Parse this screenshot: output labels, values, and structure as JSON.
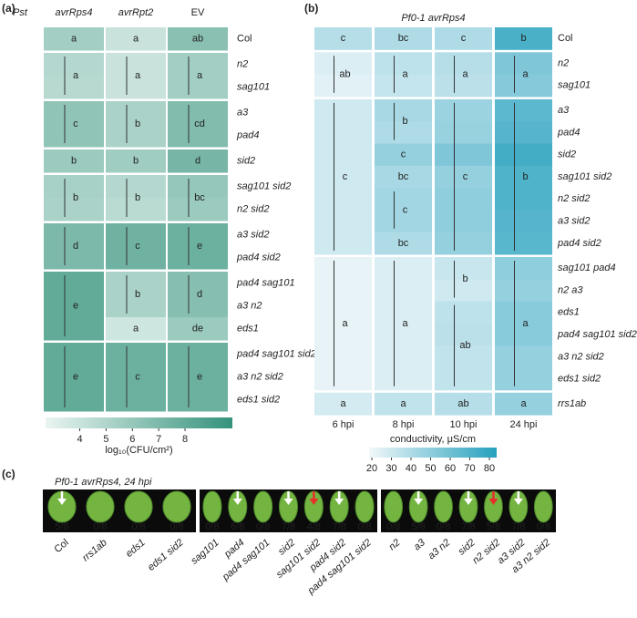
{
  "chart_data": [
    {
      "type": "heatmap",
      "panel_label": "(a)",
      "corner_label": "Pst",
      "columns": [
        "avrRps4",
        "avrRpt2",
        "EV"
      ],
      "rows": [
        "Col",
        "n2",
        "sag101",
        "a3",
        "pad4",
        "sid2",
        "sag101 sid2",
        "n2 sid2",
        "a3 sid2",
        "pad4 sid2",
        "pad4 sag101",
        "a3 n2",
        "eds1",
        "pad4 sag101 sid2",
        "a3 n2 sid2",
        "eds1 sid2"
      ],
      "values": [
        [
          5.5,
          4.0,
          6.5
        ],
        [
          4.8,
          4.0,
          5.5
        ],
        [
          4.7,
          4.0,
          5.5
        ],
        [
          6.2,
          5.2,
          6.8
        ],
        [
          6.2,
          5.2,
          6.8
        ],
        [
          5.8,
          5.6,
          7.2
        ],
        [
          5.3,
          4.8,
          6.0
        ],
        [
          5.2,
          4.6,
          5.8
        ],
        [
          7.0,
          7.5,
          7.6
        ],
        [
          7.0,
          7.5,
          7.6
        ],
        [
          8.0,
          5.2,
          6.6
        ],
        [
          8.0,
          5.2,
          6.6
        ],
        [
          8.0,
          3.8,
          5.8
        ],
        [
          8.0,
          7.6,
          7.6
        ],
        [
          8.0,
          7.6,
          7.6
        ],
        [
          8.0,
          7.6,
          7.6
        ]
      ],
      "letters": [
        {
          "text": "a",
          "column": 0,
          "rows": [
            0,
            0
          ]
        },
        {
          "text": "a",
          "column": 0,
          "rows": [
            1,
            2
          ]
        },
        {
          "text": "c",
          "column": 0,
          "rows": [
            3,
            4
          ]
        },
        {
          "text": "b",
          "column": 0,
          "rows": [
            5,
            5
          ]
        },
        {
          "text": "b",
          "column": 0,
          "rows": [
            6,
            7
          ]
        },
        {
          "text": "d",
          "column": 0,
          "rows": [
            8,
            9
          ]
        },
        {
          "text": "e",
          "column": 0,
          "rows": [
            10,
            12
          ]
        },
        {
          "text": "e",
          "column": 0,
          "rows": [
            13,
            15
          ]
        },
        {
          "text": "a",
          "column": 1,
          "rows": [
            0,
            0
          ]
        },
        {
          "text": "a",
          "column": 1,
          "rows": [
            1,
            2
          ]
        },
        {
          "text": "b",
          "column": 1,
          "rows": [
            3,
            4
          ]
        },
        {
          "text": "b",
          "column": 1,
          "rows": [
            5,
            5
          ]
        },
        {
          "text": "b",
          "column": 1,
          "rows": [
            6,
            7
          ]
        },
        {
          "text": "c",
          "column": 1,
          "rows": [
            8,
            9
          ]
        },
        {
          "text": "b",
          "column": 1,
          "rows": [
            10,
            11
          ]
        },
        {
          "text": "a",
          "column": 1,
          "rows": [
            12,
            12
          ]
        },
        {
          "text": "c",
          "column": 1,
          "rows": [
            13,
            15
          ]
        },
        {
          "text": "ab",
          "column": 2,
          "rows": [
            0,
            0
          ]
        },
        {
          "text": "a",
          "column": 2,
          "rows": [
            1,
            2
          ]
        },
        {
          "text": "cd",
          "column": 2,
          "rows": [
            3,
            4
          ]
        },
        {
          "text": "d",
          "column": 2,
          "rows": [
            5,
            5
          ]
        },
        {
          "text": "bc",
          "column": 2,
          "rows": [
            6,
            7
          ]
        },
        {
          "text": "e",
          "column": 2,
          "rows": [
            8,
            9
          ]
        },
        {
          "text": "d",
          "column": 2,
          "rows": [
            10,
            11
          ]
        },
        {
          "text": "de",
          "column": 2,
          "rows": [
            12,
            12
          ]
        },
        {
          "text": "e",
          "column": 2,
          "rows": [
            13,
            15
          ]
        }
      ],
      "colormap": [
        "#eaf5f2",
        "#34927b"
      ],
      "colorbar": {
        "label": "log₁₀(CFU/cm²)",
        "lim": [
          2.7,
          9.8
        ],
        "ticks": [
          4,
          5,
          6,
          7,
          8
        ]
      }
    },
    {
      "type": "heatmap",
      "panel_label": "(b)",
      "title": "Pf0-1 avrRps4",
      "columns": [
        "6 hpi",
        "8 hpi",
        "10 hpi",
        "24 hpi"
      ],
      "rows": [
        "Col",
        "n2",
        "sag101",
        "a3",
        "pad4",
        "sid2",
        "sag101 sid2",
        "n2 sid2",
        "a3 sid2",
        "pad4 sid2",
        "sag101 pad4",
        "n2 a3",
        "eds1",
        "pad4 sag101 sid2",
        "a3 n2 sid2",
        "eds1 sid2",
        "rrs1ab"
      ],
      "values": [
        [
          38,
          40,
          40,
          72
        ],
        [
          26,
          35,
          38,
          55
        ],
        [
          24,
          33,
          36,
          53
        ],
        [
          30,
          42,
          46,
          66
        ],
        [
          30,
          40,
          47,
          68
        ],
        [
          30,
          48,
          55,
          74
        ],
        [
          30,
          42,
          48,
          70
        ],
        [
          30,
          44,
          50,
          70
        ],
        [
          30,
          44,
          50,
          68
        ],
        [
          30,
          40,
          48,
          67
        ],
        [
          22,
          26,
          32,
          50
        ],
        [
          22,
          26,
          30,
          48
        ],
        [
          22,
          26,
          35,
          52
        ],
        [
          22,
          26,
          36,
          52
        ],
        [
          22,
          26,
          34,
          48
        ],
        [
          22,
          26,
          34,
          48
        ],
        [
          28,
          34,
          38,
          48
        ]
      ],
      "letters": [
        {
          "text": "c",
          "column": 0,
          "rows": [
            0,
            0
          ]
        },
        {
          "text": "ab",
          "column": 0,
          "rows": [
            1,
            2
          ]
        },
        {
          "text": "c",
          "column": 0,
          "rows": [
            3,
            9
          ]
        },
        {
          "text": "a",
          "column": 0,
          "rows": [
            10,
            15
          ]
        },
        {
          "text": "a",
          "column": 0,
          "rows": [
            16,
            16
          ]
        },
        {
          "text": "bc",
          "column": 1,
          "rows": [
            0,
            0
          ]
        },
        {
          "text": "a",
          "column": 1,
          "rows": [
            1,
            2
          ]
        },
        {
          "text": "b",
          "column": 1,
          "rows": [
            3,
            4
          ]
        },
        {
          "text": "c",
          "column": 1,
          "rows": [
            5,
            5
          ]
        },
        {
          "text": "bc",
          "column": 1,
          "rows": [
            6,
            6
          ]
        },
        {
          "text": "c",
          "column": 1,
          "rows": [
            7,
            8
          ]
        },
        {
          "text": "bc",
          "column": 1,
          "rows": [
            9,
            9
          ]
        },
        {
          "text": "a",
          "column": 1,
          "rows": [
            10,
            15
          ]
        },
        {
          "text": "a",
          "column": 1,
          "rows": [
            16,
            16
          ]
        },
        {
          "text": "c",
          "column": 2,
          "rows": [
            0,
            0
          ]
        },
        {
          "text": "a",
          "column": 2,
          "rows": [
            1,
            2
          ]
        },
        {
          "text": "c",
          "column": 2,
          "rows": [
            3,
            9
          ]
        },
        {
          "text": "b",
          "column": 2,
          "rows": [
            10,
            11
          ]
        },
        {
          "text": "ab",
          "column": 2,
          "rows": [
            12,
            15
          ]
        },
        {
          "text": "ab",
          "column": 2,
          "rows": [
            16,
            16
          ]
        },
        {
          "text": "b",
          "column": 3,
          "rows": [
            0,
            0
          ]
        },
        {
          "text": "a",
          "column": 3,
          "rows": [
            1,
            2
          ]
        },
        {
          "text": "b",
          "column": 3,
          "rows": [
            3,
            9
          ]
        },
        {
          "text": "a",
          "column": 3,
          "rows": [
            10,
            15
          ]
        },
        {
          "text": "a",
          "column": 3,
          "rows": [
            16,
            16
          ]
        }
      ],
      "highlight": {
        "color": "#e8302a",
        "rows": [
          6,
          7
        ]
      },
      "colormap": [
        "#f2f8fa",
        "#24a0bd"
      ],
      "colorbar": {
        "label": "conductivity, μS/cm",
        "lim": [
          18.6,
          83.7
        ],
        "ticks": [
          20,
          30,
          40,
          50,
          60,
          70,
          80
        ]
      }
    }
  ],
  "photo_panel": {
    "panel_label": "(c)",
    "caption": "Pf0-1 avrRps4, 24 hpi",
    "groups": [
      [
        {
          "label": "Col",
          "score": "5/8",
          "arrow": "#ffffff"
        },
        {
          "label": "rrs1ab",
          "score": "0/8"
        },
        {
          "label": "eds1",
          "score": "0/8"
        },
        {
          "label": "eds1 sid2",
          "score": "0/8"
        }
      ],
      [
        {
          "label": "sag101",
          "score": "0/8"
        },
        {
          "label": "pad4",
          "score": "6/8",
          "arrow": "#ffffff"
        },
        {
          "label": "pad4 sag101",
          "score": "0/8"
        },
        {
          "label": "sid2",
          "score": "7/8",
          "arrow": "#ffffff"
        },
        {
          "label": "sag101 sid2",
          "score": "4/8",
          "arrow": "#e8302a",
          "label_color": "#e8302a"
        },
        {
          "label": "pad4 sid2",
          "score": "7/8",
          "arrow": "#ffffff"
        },
        {
          "label": "pad4 sag101 sid2",
          "score": "0/8"
        }
      ],
      [
        {
          "label": "n2",
          "score": "0/8"
        },
        {
          "label": "a3",
          "score": "5/8",
          "arrow": "#ffffff"
        },
        {
          "label": "a3 n2",
          "score": "0/8"
        },
        {
          "label": "sid2",
          "score": "7/8",
          "arrow": "#ffffff"
        },
        {
          "label": "n2 sid2",
          "score": "5/8",
          "arrow": "#e8302a",
          "label_color": "#e8302a"
        },
        {
          "label": "a3 sid2",
          "score": "7/8",
          "arrow": "#ffffff"
        },
        {
          "label": "a3 n2 sid2",
          "score": "0/8"
        }
      ]
    ]
  }
}
